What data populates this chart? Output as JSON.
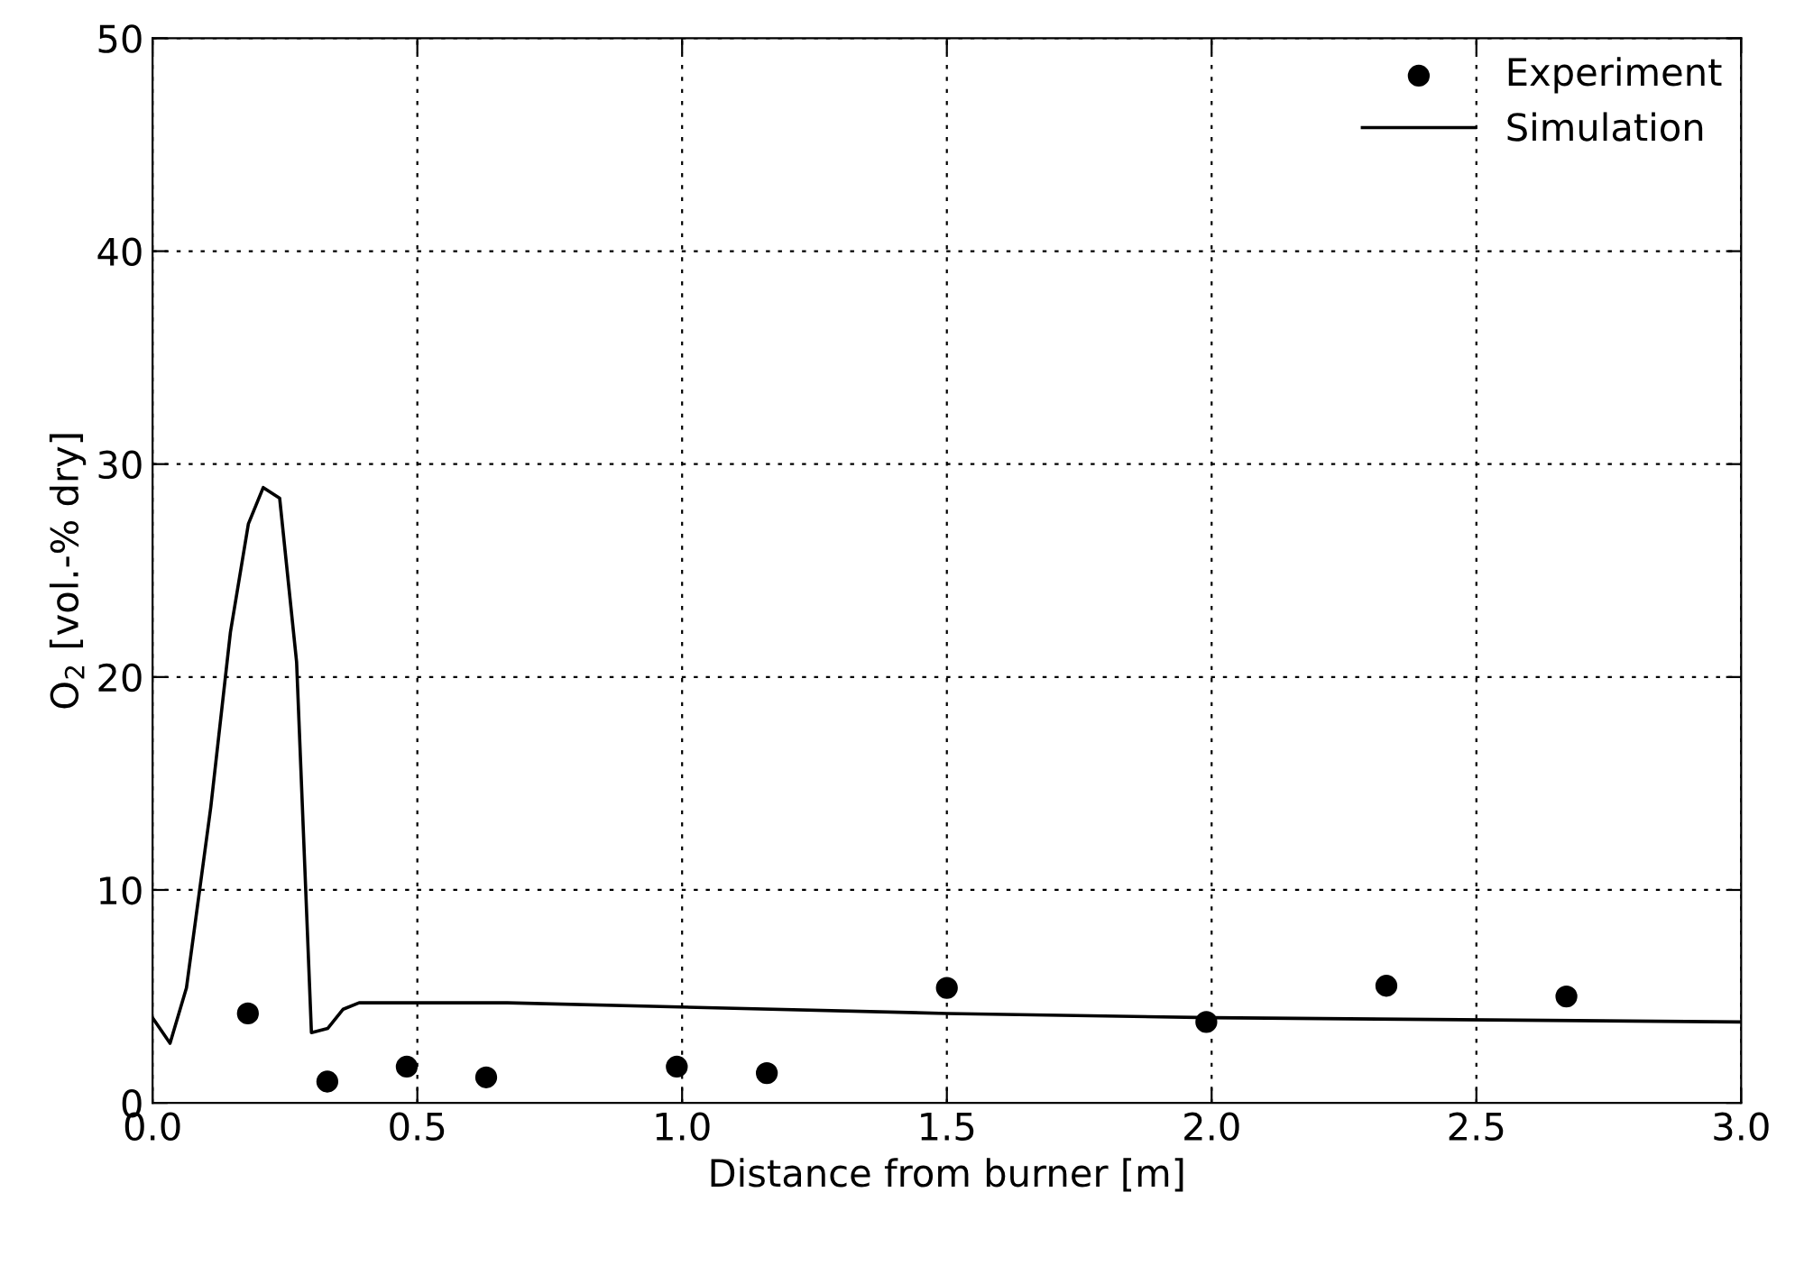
{
  "chart_data": {
    "type": "line",
    "xlabel": "Distance from burner [m]",
    "ylabel": "O$_{2}$ [vol.-% dry]",
    "xlim": [
      0,
      3
    ],
    "ylim": [
      0,
      50
    ],
    "xticks": [
      {
        "value": 0,
        "label": "0.0"
      },
      0.5,
      {
        "value": 1,
        "label": "1.0"
      },
      1.5,
      {
        "value": 2,
        "label": "2.0"
      },
      2.5,
      {
        "value": 3,
        "label": "3.0"
      }
    ],
    "yticks": [
      0,
      10,
      20,
      30,
      40,
      50
    ],
    "grid": true,
    "legend": "top right",
    "series": [
      {
        "name": "Experiment",
        "type": "scatter",
        "marker": "circle",
        "color": "#000000",
        "x": [
          0.18,
          0.33,
          0.48,
          0.63,
          0.99,
          1.16,
          1.5,
          1.99,
          2.33,
          2.67
        ],
        "values": [
          4.2,
          1.0,
          1.7,
          1.2,
          1.7,
          1.4,
          5.4,
          3.8,
          5.5,
          5.0
        ]
      },
      {
        "name": "Simulation",
        "marker": "none",
        "line_style": "solid",
        "color": "#000000",
        "x": [
          0,
          0.033,
          0.064,
          0.11,
          0.147,
          0.181,
          0.209,
          0.24,
          0.272,
          0.3,
          0.331,
          0.36,
          0.39,
          0.67,
          1.5,
          2.0,
          3.0
        ],
        "values": [
          4.0,
          2.8,
          5.4,
          13.9,
          22.1,
          27.2,
          28.9,
          28.4,
          20.7,
          3.3,
          3.5,
          4.4,
          4.7,
          4.7,
          4.2,
          4.0,
          3.8
        ]
      }
    ]
  }
}
